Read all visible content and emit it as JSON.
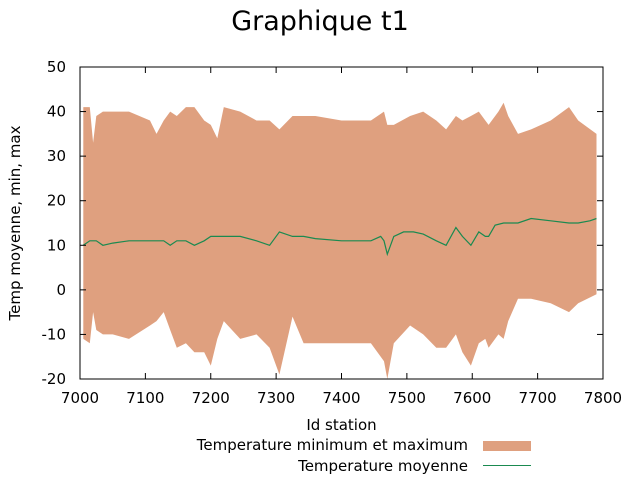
{
  "chart_data": {
    "type": "area",
    "title": "Graphique t1",
    "xlabel": "Id station",
    "ylabel": "Temp moyenne, min, max",
    "xlim": [
      7000,
      7800
    ],
    "ylim": [
      -20,
      50
    ],
    "xticks": [
      7000,
      7100,
      7200,
      7300,
      7400,
      7500,
      7600,
      7700,
      7800
    ],
    "yticks": [
      -20,
      -10,
      0,
      10,
      20,
      30,
      40,
      50
    ],
    "grid": false,
    "legend_position": "bottom",
    "colors": {
      "area": "#dfa07f",
      "line": "#1a8a50"
    },
    "series": [
      {
        "name": "Temperature minimum et maximum",
        "kind": "band",
        "x": [
          7005,
          7015,
          7020,
          7025,
          7035,
          7050,
          7075,
          7107,
          7117,
          7128,
          7138,
          7148,
          7162,
          7175,
          7190,
          7200,
          7210,
          7220,
          7245,
          7270,
          7290,
          7305,
          7325,
          7342,
          7360,
          7400,
          7427,
          7445,
          7465,
          7470,
          7480,
          7505,
          7525,
          7545,
          7560,
          7575,
          7585,
          7598,
          7610,
          7620,
          7625,
          7640,
          7648,
          7655,
          7670,
          7690,
          7720,
          7748,
          7762,
          7790
        ],
        "max": [
          41,
          41,
          33,
          39,
          40,
          40,
          40,
          38,
          35,
          38,
          40,
          39,
          41,
          41,
          38,
          37,
          34,
          41,
          40,
          38,
          38,
          36,
          39,
          39,
          39,
          38,
          38,
          38,
          40,
          37,
          37,
          39,
          40,
          38,
          36,
          39,
          38,
          39,
          40,
          38,
          37,
          40,
          42,
          39,
          35,
          36,
          38,
          41,
          38,
          35
        ],
        "min": [
          -11,
          -12,
          -5,
          -9,
          -10,
          -10,
          -11,
          -8,
          -7,
          -5,
          -9,
          -13,
          -12,
          -14,
          -14,
          -17,
          -11,
          -7,
          -11,
          -10,
          -13,
          -19,
          -6,
          -12,
          -12,
          -12,
          -12,
          -12,
          -16,
          -20,
          -12,
          -8,
          -10,
          -13,
          -13,
          -10,
          -14,
          -17,
          -12,
          -11,
          -13,
          -10,
          -11,
          -7,
          -2,
          -2,
          -3,
          -5,
          -3,
          -1
        ]
      },
      {
        "name": "Temperature moyenne",
        "kind": "line",
        "x": [
          7005,
          7015,
          7025,
          7035,
          7050,
          7075,
          7107,
          7128,
          7138,
          7148,
          7162,
          7175,
          7190,
          7200,
          7210,
          7220,
          7245,
          7270,
          7290,
          7305,
          7325,
          7342,
          7360,
          7400,
          7427,
          7445,
          7460,
          7465,
          7470,
          7480,
          7495,
          7510,
          7525,
          7545,
          7560,
          7575,
          7585,
          7598,
          7610,
          7620,
          7625,
          7635,
          7648,
          7655,
          7670,
          7690,
          7720,
          7748,
          7762,
          7780,
          7790
        ],
        "values": [
          10,
          11,
          11,
          10,
          10.5,
          11,
          11,
          11,
          10,
          11,
          11,
          10,
          11,
          12,
          12,
          12,
          12,
          11,
          10,
          13,
          12,
          12,
          11.5,
          11,
          11,
          11,
          12,
          11,
          8,
          12,
          13,
          13,
          12.5,
          11,
          10,
          14,
          12,
          10,
          13,
          12,
          12,
          14.5,
          15,
          15,
          15,
          16,
          15.5,
          15,
          15,
          15.5,
          16
        ]
      }
    ]
  }
}
